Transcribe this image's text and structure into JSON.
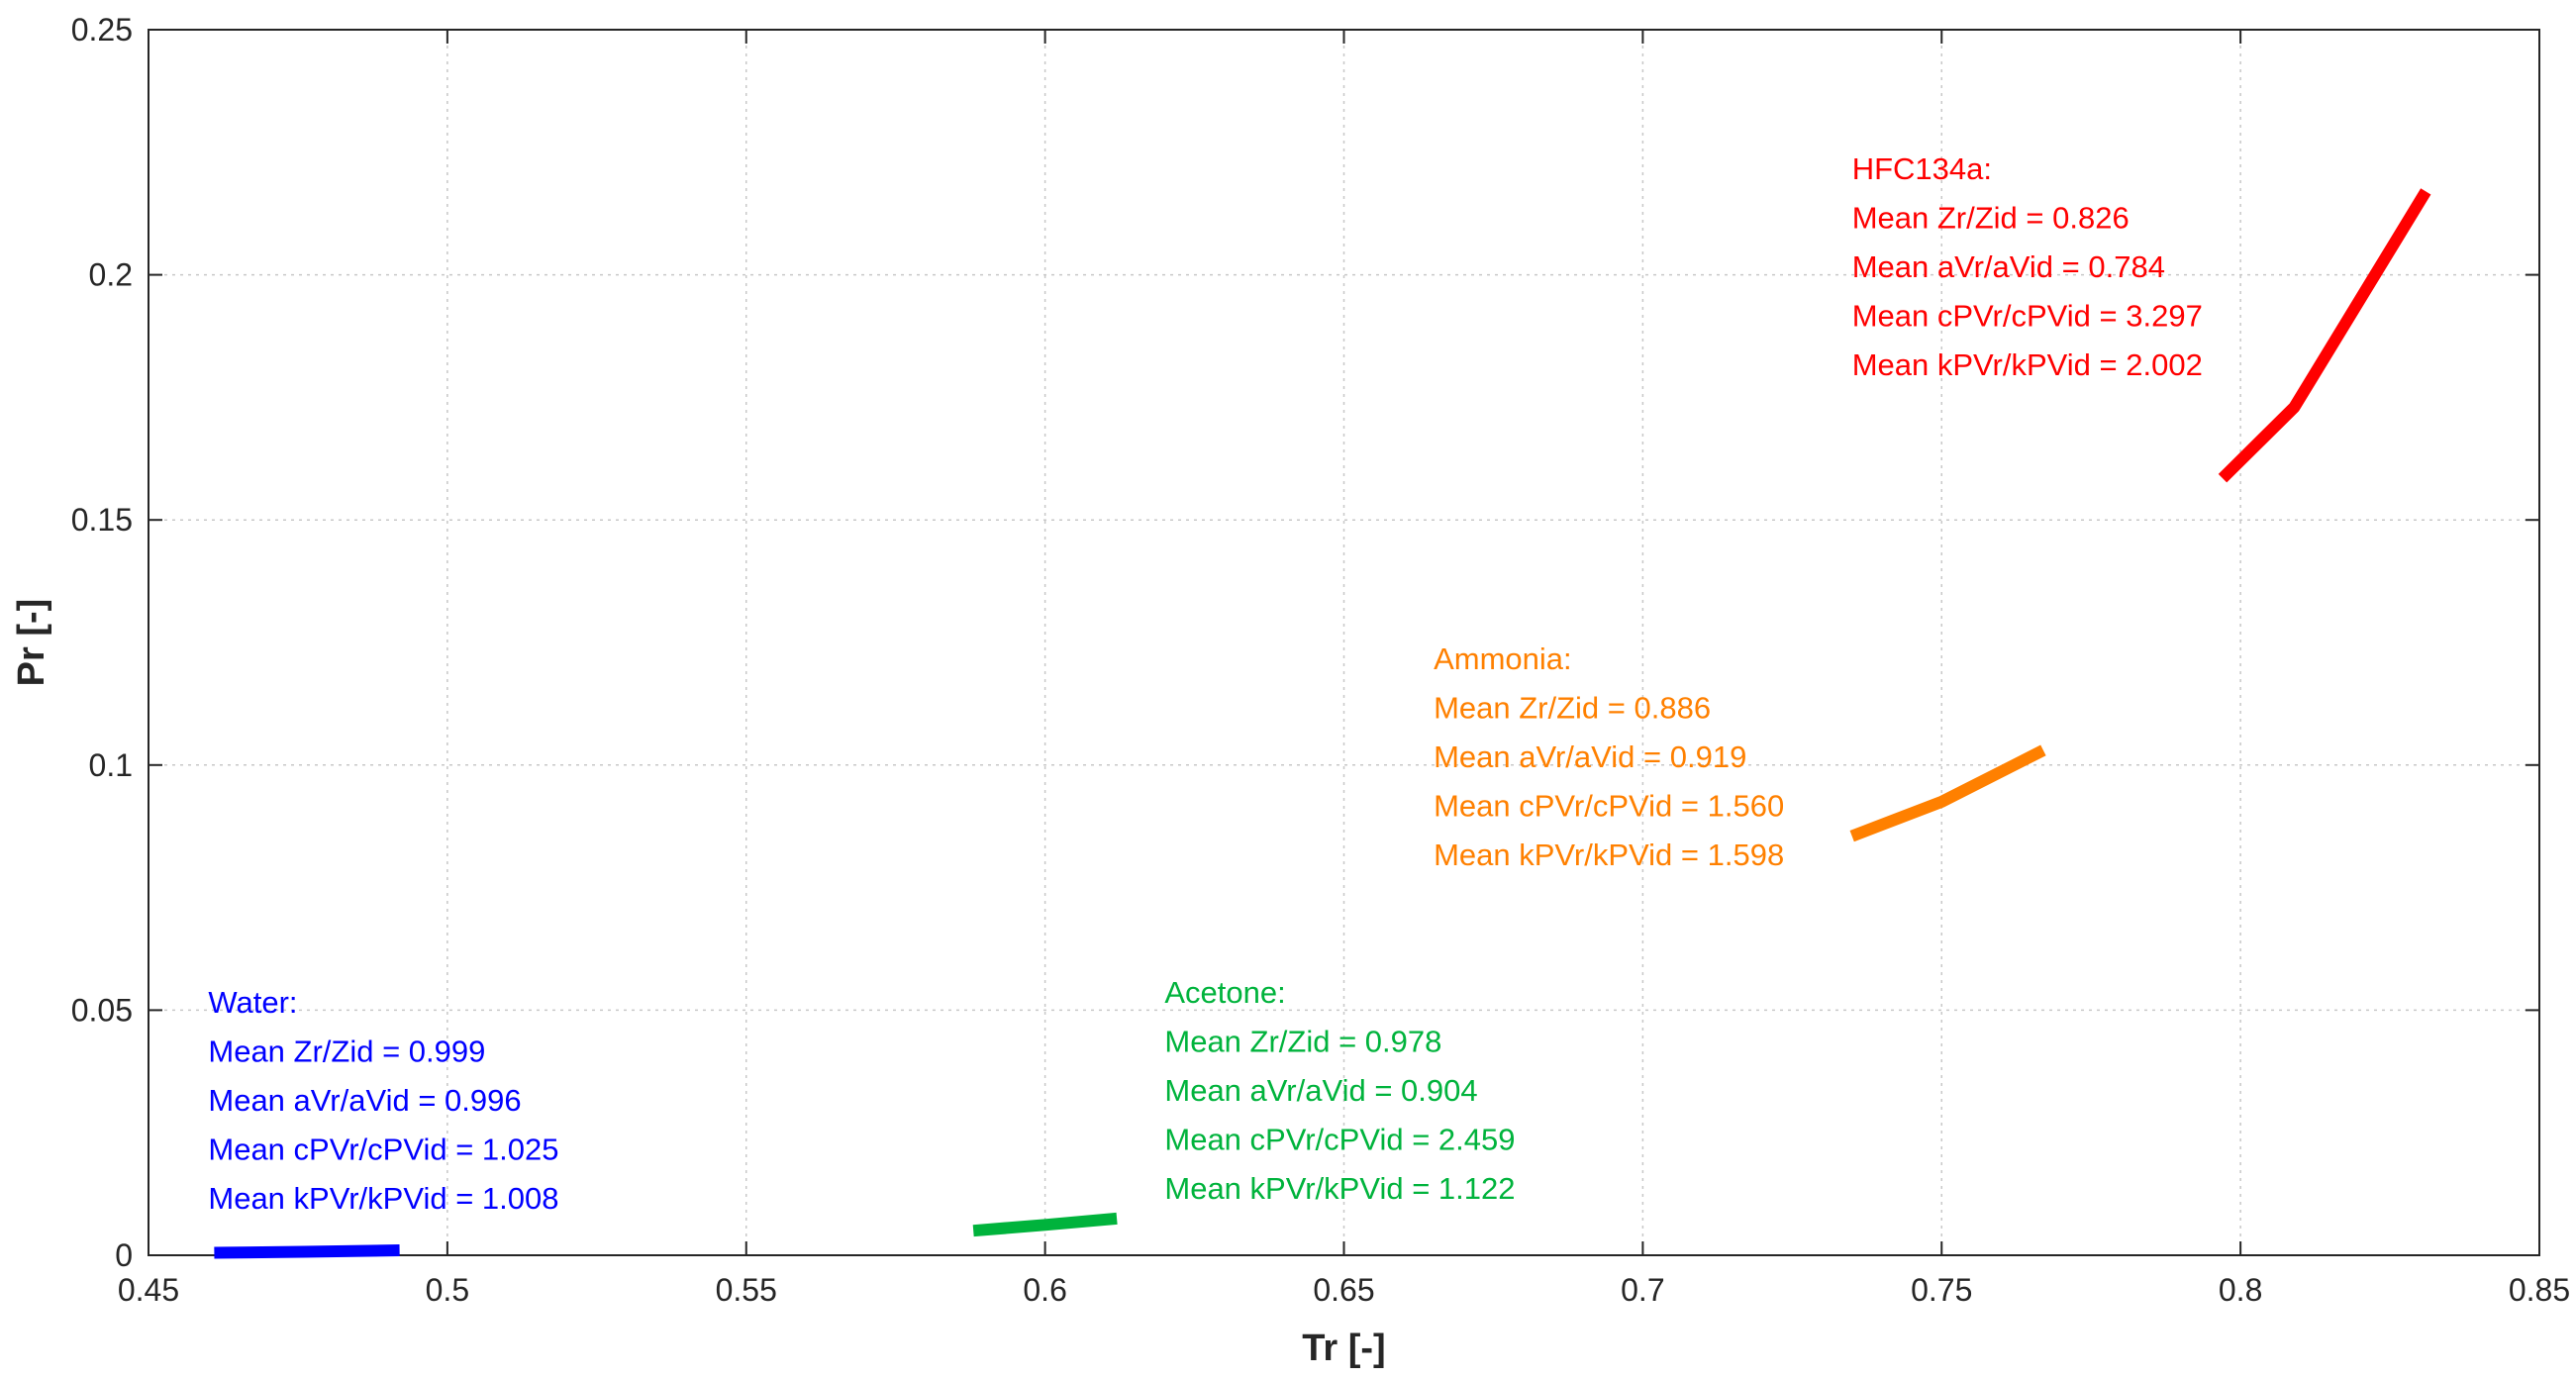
{
  "chart_data": {
    "type": "line",
    "xlabel": "Tr [-]",
    "ylabel": "Pr [-]",
    "xlim": [
      0.45,
      0.85
    ],
    "ylim": [
      0,
      0.25
    ],
    "xticks": [
      0.45,
      0.5,
      0.55,
      0.6,
      0.65,
      0.7,
      0.75,
      0.8,
      0.85
    ],
    "yticks": [
      0,
      0.05,
      0.1,
      0.15,
      0.2,
      0.25
    ],
    "xtick_labels": [
      "0.45",
      "0.5",
      "0.55",
      "0.6",
      "0.65",
      "0.7",
      "0.75",
      "0.8",
      "0.85"
    ],
    "ytick_labels": [
      "0",
      "0.05",
      "0.1",
      "0.15",
      "0.2",
      "0.25"
    ],
    "grid": true,
    "series": [
      {
        "color": "#0000ff",
        "x": [
          0.461,
          0.476,
          0.492
        ],
        "y": [
          0.0005,
          0.0007,
          0.001
        ]
      },
      {
        "color": "#00b33c",
        "x": [
          0.588,
          0.6,
          0.612
        ],
        "y": [
          0.005,
          0.0062,
          0.0075
        ]
      },
      {
        "color": "#ff8000",
        "x": [
          0.735,
          0.75,
          0.767
        ],
        "y": [
          0.0855,
          0.0925,
          0.103
        ]
      },
      {
        "color": "#ff0000",
        "x": [
          0.797,
          0.809,
          0.82,
          0.831
        ],
        "y": [
          0.1585,
          0.173,
          0.195,
          0.217
        ]
      }
    ],
    "annotations": [
      {
        "color": "#0000ff",
        "x": 0.46,
        "y": 0.0495,
        "lines": [
          "Water:",
          "Mean Zr/Zid = 0.999",
          "Mean aVr/aVid = 0.996",
          "Mean cPVr/cPVid = 1.025",
          "Mean kPVr/kPVid = 1.008"
        ]
      },
      {
        "color": "#00b33c",
        "x": 0.62,
        "y": 0.0515,
        "lines": [
          "Acetone:",
          "Mean Zr/Zid = 0.978",
          "Mean aVr/aVid = 0.904",
          "Mean cPVr/cPVid = 2.459",
          "Mean kPVr/kPVid = 1.122"
        ]
      },
      {
        "color": "#ff8000",
        "x": 0.665,
        "y": 0.1195,
        "lines": [
          "Ammonia:",
          "Mean Zr/Zid = 0.886",
          "Mean aVr/aVid = 0.919",
          "Mean cPVr/cPVid = 1.560",
          "Mean kPVr/kPVid = 1.598"
        ]
      },
      {
        "color": "#ff0000",
        "x": 0.735,
        "y": 0.2195,
        "lines": [
          "HFC134a:",
          "Mean Zr/Zid = 0.826",
          "Mean aVr/aVid = 0.784",
          "Mean cPVr/cPVid = 3.297",
          "Mean kPVr/kPVid = 2.002"
        ]
      }
    ]
  }
}
